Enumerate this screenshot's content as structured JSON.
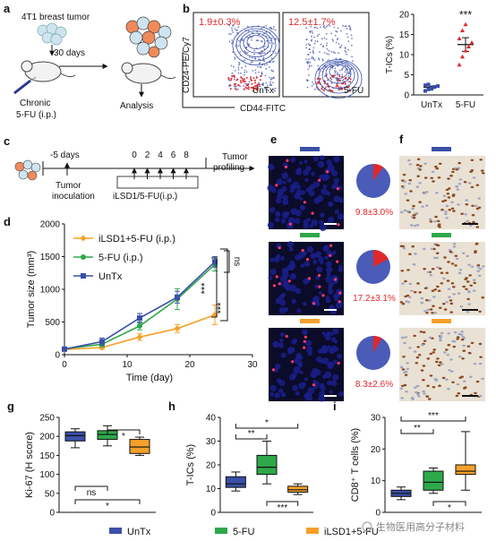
{
  "colors": {
    "untx": "#3a4fa8",
    "fu": "#2ea84a",
    "ilsd": "#f5a02a",
    "red": "#e0282a",
    "nuclei": "#1a1f8a"
  },
  "panel_a": {
    "letter": "a",
    "tumor": "4T1 breast tumor",
    "days": "30 days",
    "chronic": "Chronic",
    "treatment": "5-FU (i.p.)",
    "analysis": "Analysis"
  },
  "panel_b": {
    "letter": "b",
    "ylabel": "CD24-PE/Cy7",
    "xlabel": "CD44-FITC",
    "untx_pct": "1.9±0.3%",
    "fu_pct": "12.5±1.7%",
    "untx_label": "UnTx",
    "fu_label": "5-FU"
  },
  "panel_c": {
    "letter": "c",
    "pre_day": "-5 days",
    "inoculation_1": "Tumor",
    "inoculation_2": "inoculation",
    "days": [
      "0",
      "2",
      "4",
      "6",
      "8"
    ],
    "treatment": "iLSD1/5-FU(i.p.)",
    "profiling_1": "Tumor",
    "profiling_2": "profiling"
  },
  "panel_e": {
    "letter": "e",
    "pcts": [
      "9.8±3.0%",
      "17.2±3.1%",
      "8.3±2.6%"
    ],
    "fractions": [
      0.098,
      0.172,
      0.083
    ]
  },
  "panel_f": {
    "letter": "f"
  },
  "chart_data": [
    {
      "panel": "b-right",
      "type": "bar",
      "ylabel": "T-ICs (%)",
      "categories": [
        "UnTx",
        "5-FU"
      ],
      "values": [
        1.9,
        12.5
      ],
      "errors": [
        0.3,
        1.7
      ],
      "points": [
        [
          1.0,
          1.4,
          1.7,
          2.0,
          2.2,
          2.4,
          2.6,
          1.5
        ],
        [
          7.5,
          9.5,
          11,
          12,
          13,
          14,
          16,
          17.5
        ]
      ],
      "ylim": [
        0,
        20
      ],
      "yticks": [
        "0",
        "5",
        "10",
        "15",
        "20"
      ],
      "significance": "***"
    },
    {
      "panel": "d",
      "type": "line",
      "xlabel": "Time (day)",
      "ylabel": "Tumor size (mm³)",
      "xlim": [
        0,
        30
      ],
      "ylim": [
        0,
        2000
      ],
      "xticks": [
        "0",
        "10",
        "20",
        "30"
      ],
      "yticks": [
        "0",
        "500",
        "1000",
        "1500",
        "2000"
      ],
      "x": [
        0,
        6,
        12,
        18,
        24
      ],
      "series": [
        {
          "name": "iLSD1+5-FU (i.p.)",
          "key": "ilsd",
          "values": [
            80,
            110,
            270,
            400,
            610
          ],
          "errors": [
            20,
            25,
            50,
            60,
            150
          ]
        },
        {
          "name": "5-FU (i.p.)",
          "key": "fu",
          "values": [
            90,
            160,
            440,
            850,
            1380
          ],
          "errors": [
            25,
            40,
            60,
            160,
            100
          ]
        },
        {
          "name": "UnTx",
          "key": "untx",
          "values": [
            85,
            200,
            560,
            880,
            1420
          ],
          "errors": [
            25,
            55,
            70,
            90,
            80
          ]
        }
      ],
      "annotations": [
        "ns",
        "***",
        "***"
      ]
    },
    {
      "panel": "g",
      "type": "box",
      "ylabel": "Ki-67 (H score)",
      "ylim": [
        0,
        250
      ],
      "yticks": [
        "0",
        "50",
        "100",
        "150",
        "200",
        "250"
      ],
      "boxes": [
        {
          "key": "untx",
          "min": 170,
          "q1": 188,
          "median": 202,
          "q3": 212,
          "max": 220
        },
        {
          "key": "fu",
          "min": 175,
          "q1": 192,
          "median": 205,
          "q3": 215,
          "max": 228
        },
        {
          "key": "ilsd",
          "min": 150,
          "q1": 155,
          "median": 172,
          "q3": 192,
          "max": 198
        }
      ],
      "annotations": [
        "*",
        "ns",
        "*"
      ]
    },
    {
      "panel": "h",
      "type": "box",
      "ylabel": "T-ICs (%)",
      "ylim": [
        0,
        40
      ],
      "yticks": [
        "0",
        "10",
        "20",
        "30",
        "40"
      ],
      "boxes": [
        {
          "key": "untx",
          "min": 9,
          "q1": 10.5,
          "median": 12,
          "q3": 15,
          "max": 17
        },
        {
          "key": "fu",
          "min": 12,
          "q1": 16,
          "median": 19,
          "q3": 24,
          "max": 30
        },
        {
          "key": "ilsd",
          "min": 7.5,
          "q1": 8.5,
          "median": 9.5,
          "q3": 11,
          "max": 12
        }
      ],
      "annotations": [
        "*",
        "**",
        "***"
      ]
    },
    {
      "panel": "i",
      "type": "box",
      "ylabel": "CD8⁺ T cells (%)",
      "ylim": [
        0,
        30
      ],
      "yticks": [
        "0",
        "10",
        "20",
        "30"
      ],
      "boxes": [
        {
          "key": "untx",
          "min": 4,
          "q1": 5,
          "median": 6,
          "q3": 7,
          "max": 8
        },
        {
          "key": "fu",
          "min": 6,
          "q1": 7,
          "median": 9.5,
          "q3": 13,
          "max": 14
        },
        {
          "key": "ilsd",
          "min": 7,
          "q1": 12,
          "median": 13,
          "q3": 15,
          "max": 25.5
        }
      ],
      "annotations": [
        "***",
        "**",
        "*"
      ]
    }
  ],
  "panel_letters": {
    "d": "d",
    "g": "g",
    "h": "h",
    "i": "i"
  },
  "legend": [
    {
      "label": "UnTx",
      "key": "untx"
    },
    {
      "label": "5-FU",
      "key": "fu"
    },
    {
      "label": "iLSD1+5-FU",
      "key": "ilsd"
    }
  ],
  "watermark": "生物医用高分子材料"
}
